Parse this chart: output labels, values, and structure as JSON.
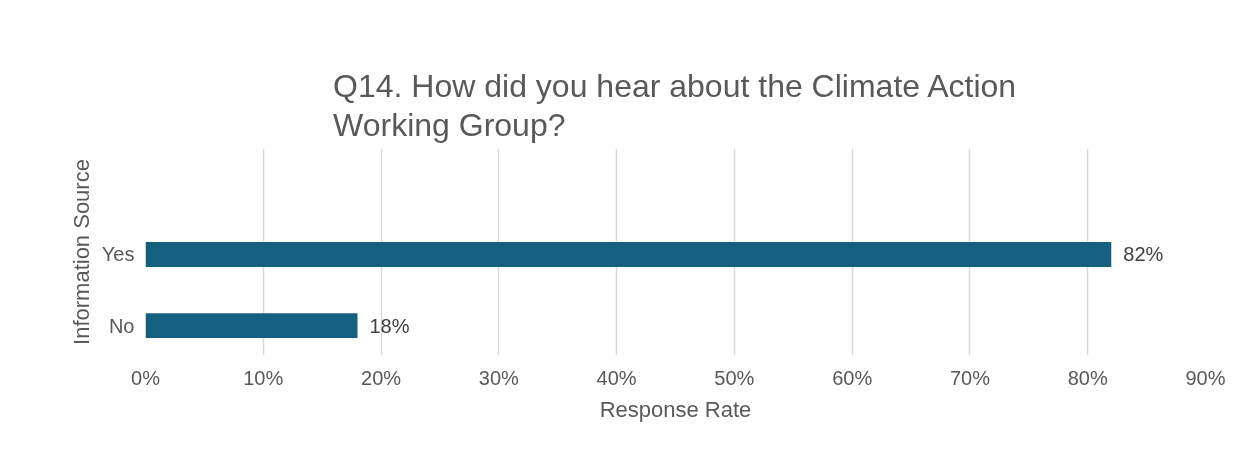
{
  "chart_data": {
    "type": "bar",
    "orientation": "horizontal",
    "title": "Q14. How did you hear about the Climate Action Working Group?",
    "xlabel": "Response Rate",
    "ylabel": "Information Source",
    "categories": [
      "Yes",
      "No"
    ],
    "values": [
      82,
      18
    ],
    "value_labels": [
      "82%",
      "18%"
    ],
    "color": "#16607f",
    "xlim": [
      0,
      90
    ],
    "xticks": [
      {
        "value": 0,
        "label": "0%"
      },
      {
        "value": 10,
        "label": "10%"
      },
      {
        "value": 20,
        "label": "20%"
      },
      {
        "value": 30,
        "label": "30%"
      },
      {
        "value": 40,
        "label": "40%"
      },
      {
        "value": 50,
        "label": "50%"
      },
      {
        "value": 60,
        "label": "60%"
      },
      {
        "value": 70,
        "label": "70%"
      },
      {
        "value": 80,
        "label": "80%"
      },
      {
        "value": 90,
        "label": "90%"
      }
    ],
    "grid": "x"
  }
}
